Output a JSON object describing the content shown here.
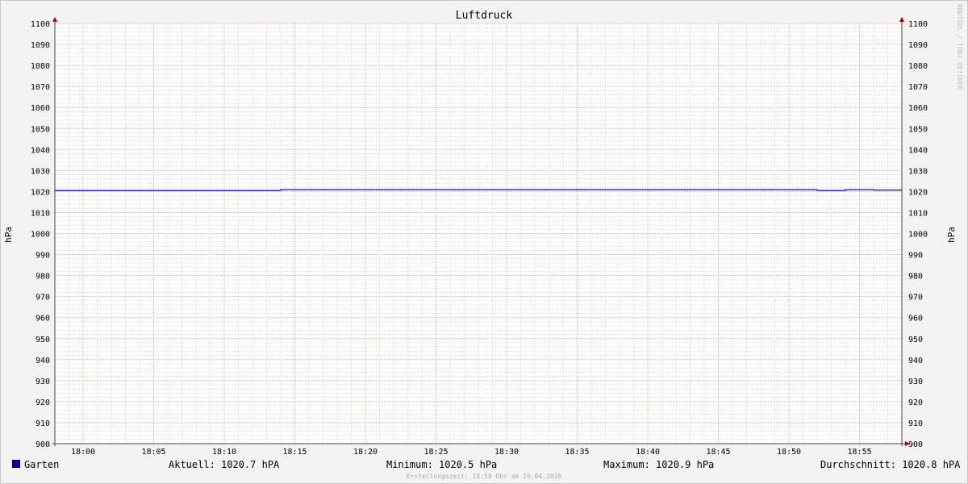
{
  "chart_data": {
    "type": "line",
    "title": "Luftdruck",
    "ylabel": "hPa",
    "ylim": [
      900,
      1100
    ],
    "yticks": [
      900,
      910,
      920,
      930,
      940,
      950,
      960,
      970,
      980,
      990,
      1000,
      1010,
      1020,
      1030,
      1040,
      1050,
      1060,
      1070,
      1080,
      1090,
      1100
    ],
    "xlim": [
      "17:58",
      "18:58"
    ],
    "xticks": [
      "18:00",
      "18:05",
      "18:10",
      "18:15",
      "18:20",
      "18:25",
      "18:30",
      "18:35",
      "18:40",
      "18:45",
      "18:50",
      "18:55"
    ],
    "grid": true,
    "series": [
      {
        "name": "Garten",
        "color": "#0000cc",
        "x": [
          "17:58",
          "18:14",
          "18:14",
          "18:52",
          "18:52",
          "18:54",
          "18:54",
          "18:56",
          "18:56",
          "18:58"
        ],
        "values": [
          1020.5,
          1020.5,
          1020.9,
          1020.9,
          1020.5,
          1020.5,
          1020.9,
          1020.9,
          1020.7,
          1020.7
        ]
      }
    ]
  },
  "legend": {
    "series": "Garten",
    "current": "Aktuell: 1020.7 hPA",
    "min": "Minimum: 1020.5 hPa",
    "max": "Maximum: 1020.9 hPa",
    "avg": "Durchschnitt: 1020.8 hPA"
  },
  "created": "Erstellungszeit: 18:58 Uhr am 19.04.2026",
  "watermark": "RRDTOOL / TOBI OETIKER"
}
